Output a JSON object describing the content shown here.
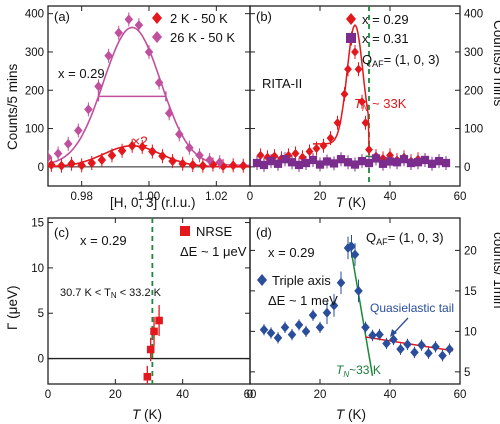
{
  "chart_data": [
    {
      "panel": "a",
      "type": "scatter",
      "panel_label": "(a)",
      "xlabel": "[H, 0, 3] (r.l.u.)",
      "ylabel": "Counts/5 mins",
      "xlim": [
        0.97,
        1.03
      ],
      "ylim": [
        -50,
        420
      ],
      "xticks": [
        0.98,
        1.0,
        1.02
      ],
      "xtick_labels": [
        "0.98",
        "1.00",
        "1.02"
      ],
      "yticks": [
        0,
        100,
        200,
        300,
        400
      ],
      "annotations": {
        "x_label": "x = 0.29",
        "factor": "×2"
      },
      "series": [
        {
          "name": "2 K - 50 K",
          "color": "#e3171c",
          "marker": "diamond",
          "x": [
            0.971,
            0.974,
            0.977,
            0.98,
            0.983,
            0.986,
            0.989,
            0.992,
            0.995,
            0.998,
            1.001,
            1.004,
            1.007,
            1.01,
            1.013,
            1.016,
            1.019,
            1.022,
            1.025,
            1.028
          ],
          "y": [
            5,
            3,
            8,
            4,
            10,
            18,
            30,
            42,
            55,
            52,
            40,
            28,
            15,
            8,
            5,
            3,
            6,
            2,
            4,
            3
          ],
          "fit": {
            "center": 0.995,
            "amplitude": 55,
            "sigma": 0.0085
          }
        },
        {
          "name": "26 K - 50 K",
          "color": "#c0509e",
          "marker": "diamond",
          "x": [
            0.97,
            0.973,
            0.976,
            0.979,
            0.982,
            0.985,
            0.988,
            0.991,
            0.994,
            0.997,
            1.0,
            1.003,
            1.006,
            1.009,
            1.012,
            1.015,
            1.018,
            1.021
          ],
          "y": [
            25,
            35,
            60,
            95,
            150,
            210,
            290,
            350,
            385,
            370,
            300,
            220,
            140,
            85,
            50,
            30,
            18,
            12
          ],
          "fit": {
            "center": 0.995,
            "amplitude": 360,
            "sigma": 0.0085,
            "offset": 10
          }
        }
      ]
    },
    {
      "panel": "b",
      "type": "scatter",
      "panel_label": "(b)",
      "xlabel": "T (K)",
      "ylabel": "Counts/5 mins",
      "xlim": [
        0,
        60
      ],
      "ylim": [
        -50,
        420
      ],
      "xticks": [
        0,
        20,
        40,
        60
      ],
      "yticks": [
        0,
        100,
        200,
        300,
        400
      ],
      "annotations": {
        "instrument": "RITA-II",
        "q_af": "Q",
        "q_af_sub": "AF",
        "q_af_value": "= (1, 0, 3)",
        "tn": "T",
        "tn_sub": "N",
        "tn_value": " ~ 33K"
      },
      "vline_x": 34,
      "series": [
        {
          "name": "x = 0.29",
          "color": "#e3171c",
          "marker": "diamond",
          "x": [
            3,
            5,
            7,
            9,
            11,
            13,
            15,
            17,
            19,
            21,
            23,
            25,
            27,
            28,
            29,
            30,
            31,
            32,
            33,
            34,
            36,
            38,
            40,
            42,
            44,
            46,
            48
          ],
          "y": [
            30,
            25,
            28,
            22,
            30,
            35,
            25,
            40,
            48,
            55,
            75,
            115,
            190,
            255,
            335,
            300,
            255,
            170,
            115,
            45,
            28,
            22,
            30,
            18,
            25,
            15,
            20
          ]
        },
        {
          "name": "x = 0.31",
          "color": "#7b2d8e",
          "marker": "square",
          "x": [
            2,
            4,
            6,
            8,
            10,
            12,
            14,
            16,
            18,
            20,
            22,
            24,
            26,
            28,
            30,
            32,
            34,
            36,
            38,
            40,
            42,
            44,
            46,
            48,
            50,
            52,
            54,
            56
          ],
          "y": [
            10,
            5,
            15,
            8,
            20,
            12,
            5,
            10,
            18,
            6,
            14,
            9,
            20,
            12,
            6,
            15,
            10,
            22,
            8,
            14,
            12,
            20,
            10,
            12,
            18,
            8,
            15,
            10
          ]
        }
      ]
    },
    {
      "panel": "c",
      "type": "scatter",
      "panel_label": "(c)",
      "xlabel": "T (K)",
      "ylabel": "Γ (μeV)",
      "xlim": [
        0,
        60
      ],
      "ylim": [
        -2.8,
        15.5
      ],
      "xticks": [
        0,
        20,
        40,
        60
      ],
      "yticks": [
        0,
        5,
        10,
        15
      ],
      "annotations": {
        "x_label": "x = 0.29",
        "range": "30.7 K < T",
        "range_sub": "N",
        "range_tail": " < 33.2 K"
      },
      "vline_x": 31,
      "series": [
        {
          "name": "NRSE",
          "subtitle": "ΔE ~ 1 μeV",
          "color": "#e3171c",
          "marker": "square",
          "x": [
            29.5,
            30.5,
            31.5,
            33
          ],
          "y": [
            -2,
            1,
            3,
            4.2
          ],
          "err": [
            1.2,
            1.3,
            1.6,
            1.7
          ]
        }
      ]
    },
    {
      "panel": "d",
      "type": "scatter",
      "panel_label": "(d)",
      "xlabel": "T (K)",
      "ylabel": "counts/ 1min",
      "xlim": [
        0,
        60
      ],
      "ylim": [
        3.5,
        24
      ],
      "xticks": [
        0,
        20,
        40,
        60
      ],
      "yticks": [
        5,
        10,
        15,
        20
      ],
      "annotations": {
        "x_label": "x = 0.29",
        "q_af": "Q",
        "q_af_sub": "AF",
        "q_af_value": "= (1, 0, 3)",
        "tail": "Quasielastic tail",
        "tn": "T",
        "tn_sub": "N",
        "tn_value": "~33 K"
      },
      "series": [
        {
          "name": "Triple axis",
          "subtitle": "ΔE ~ 1 meV",
          "color": "#2a4d9c",
          "marker": "diamond",
          "x": [
            4,
            6,
            8,
            10,
            12,
            14,
            16,
            18,
            20,
            22,
            24,
            26,
            28,
            29,
            30,
            31,
            33,
            35,
            37,
            39,
            41,
            43,
            45,
            47,
            49,
            51,
            53,
            55,
            57
          ],
          "y": [
            10.2,
            9.8,
            9.2,
            10.5,
            9.6,
            10.8,
            10.0,
            12.0,
            10.5,
            12.3,
            13.2,
            16.0,
            20.3,
            20.5,
            19.5,
            15.0,
            10.5,
            9.5,
            9.6,
            8.5,
            9.0,
            7.8,
            8.4,
            7.4,
            8.3,
            7.3,
            8.1,
            7.0,
            7.8
          ]
        }
      ]
    }
  ]
}
